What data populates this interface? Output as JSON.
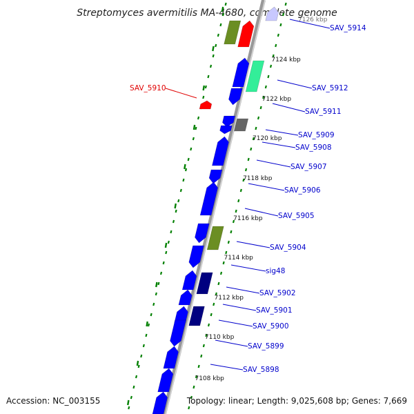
{
  "title": "Streptomyces avermitilis MA-4680, complete genome",
  "footer": {
    "accession": "Accession: NC_003155",
    "summary": "Topology: linear; Length: 9,025,608 bp; Genes: 7,669"
  },
  "colors": {
    "label_default": "#0000cc",
    "label_highlight": "#e00000",
    "gene_blue": "#0000ff",
    "gene_navy": "#000080",
    "gene_green": "#6b8e23",
    "gene_red": "#ff0000",
    "gene_mint": "#33ee99",
    "gene_gray": "#666666",
    "gene_lavender": "#c8c8ff",
    "tick": "#008000",
    "backbone": "#999999"
  },
  "kbp_marks": [
    {
      "label": "7124 kbp"
    },
    {
      "label": "7122 kbp"
    },
    {
      "label": "7120 kbp"
    },
    {
      "label": "7118 kbp"
    },
    {
      "label": "7116 kbp"
    },
    {
      "label": "7114 kbp"
    },
    {
      "label": "7112 kbp"
    },
    {
      "label": "7110 kbp"
    },
    {
      "label": "7108 kbp"
    }
  ],
  "partial_kbp_label": "7126 kbp",
  "gene_labels": [
    {
      "text": "SAV_5914",
      "highlight": false
    },
    {
      "text": "SAV_5912",
      "highlight": false
    },
    {
      "text": "SAV_5911",
      "highlight": false
    },
    {
      "text": "SAV_5910",
      "highlight": true
    },
    {
      "text": "SAV_5909",
      "highlight": false
    },
    {
      "text": "SAV_5908",
      "highlight": false
    },
    {
      "text": "SAV_5907",
      "highlight": false
    },
    {
      "text": "SAV_5906",
      "highlight": false
    },
    {
      "text": "SAV_5905",
      "highlight": false
    },
    {
      "text": "SAV_5904",
      "highlight": false
    },
    {
      "text": "sig48",
      "highlight": false
    },
    {
      "text": "SAV_5902",
      "highlight": false
    },
    {
      "text": "SAV_5901",
      "highlight": false
    },
    {
      "text": "SAV_5900",
      "highlight": false
    },
    {
      "text": "SAV_5899",
      "highlight": false
    },
    {
      "text": "SAV_5898",
      "highlight": false
    }
  ]
}
